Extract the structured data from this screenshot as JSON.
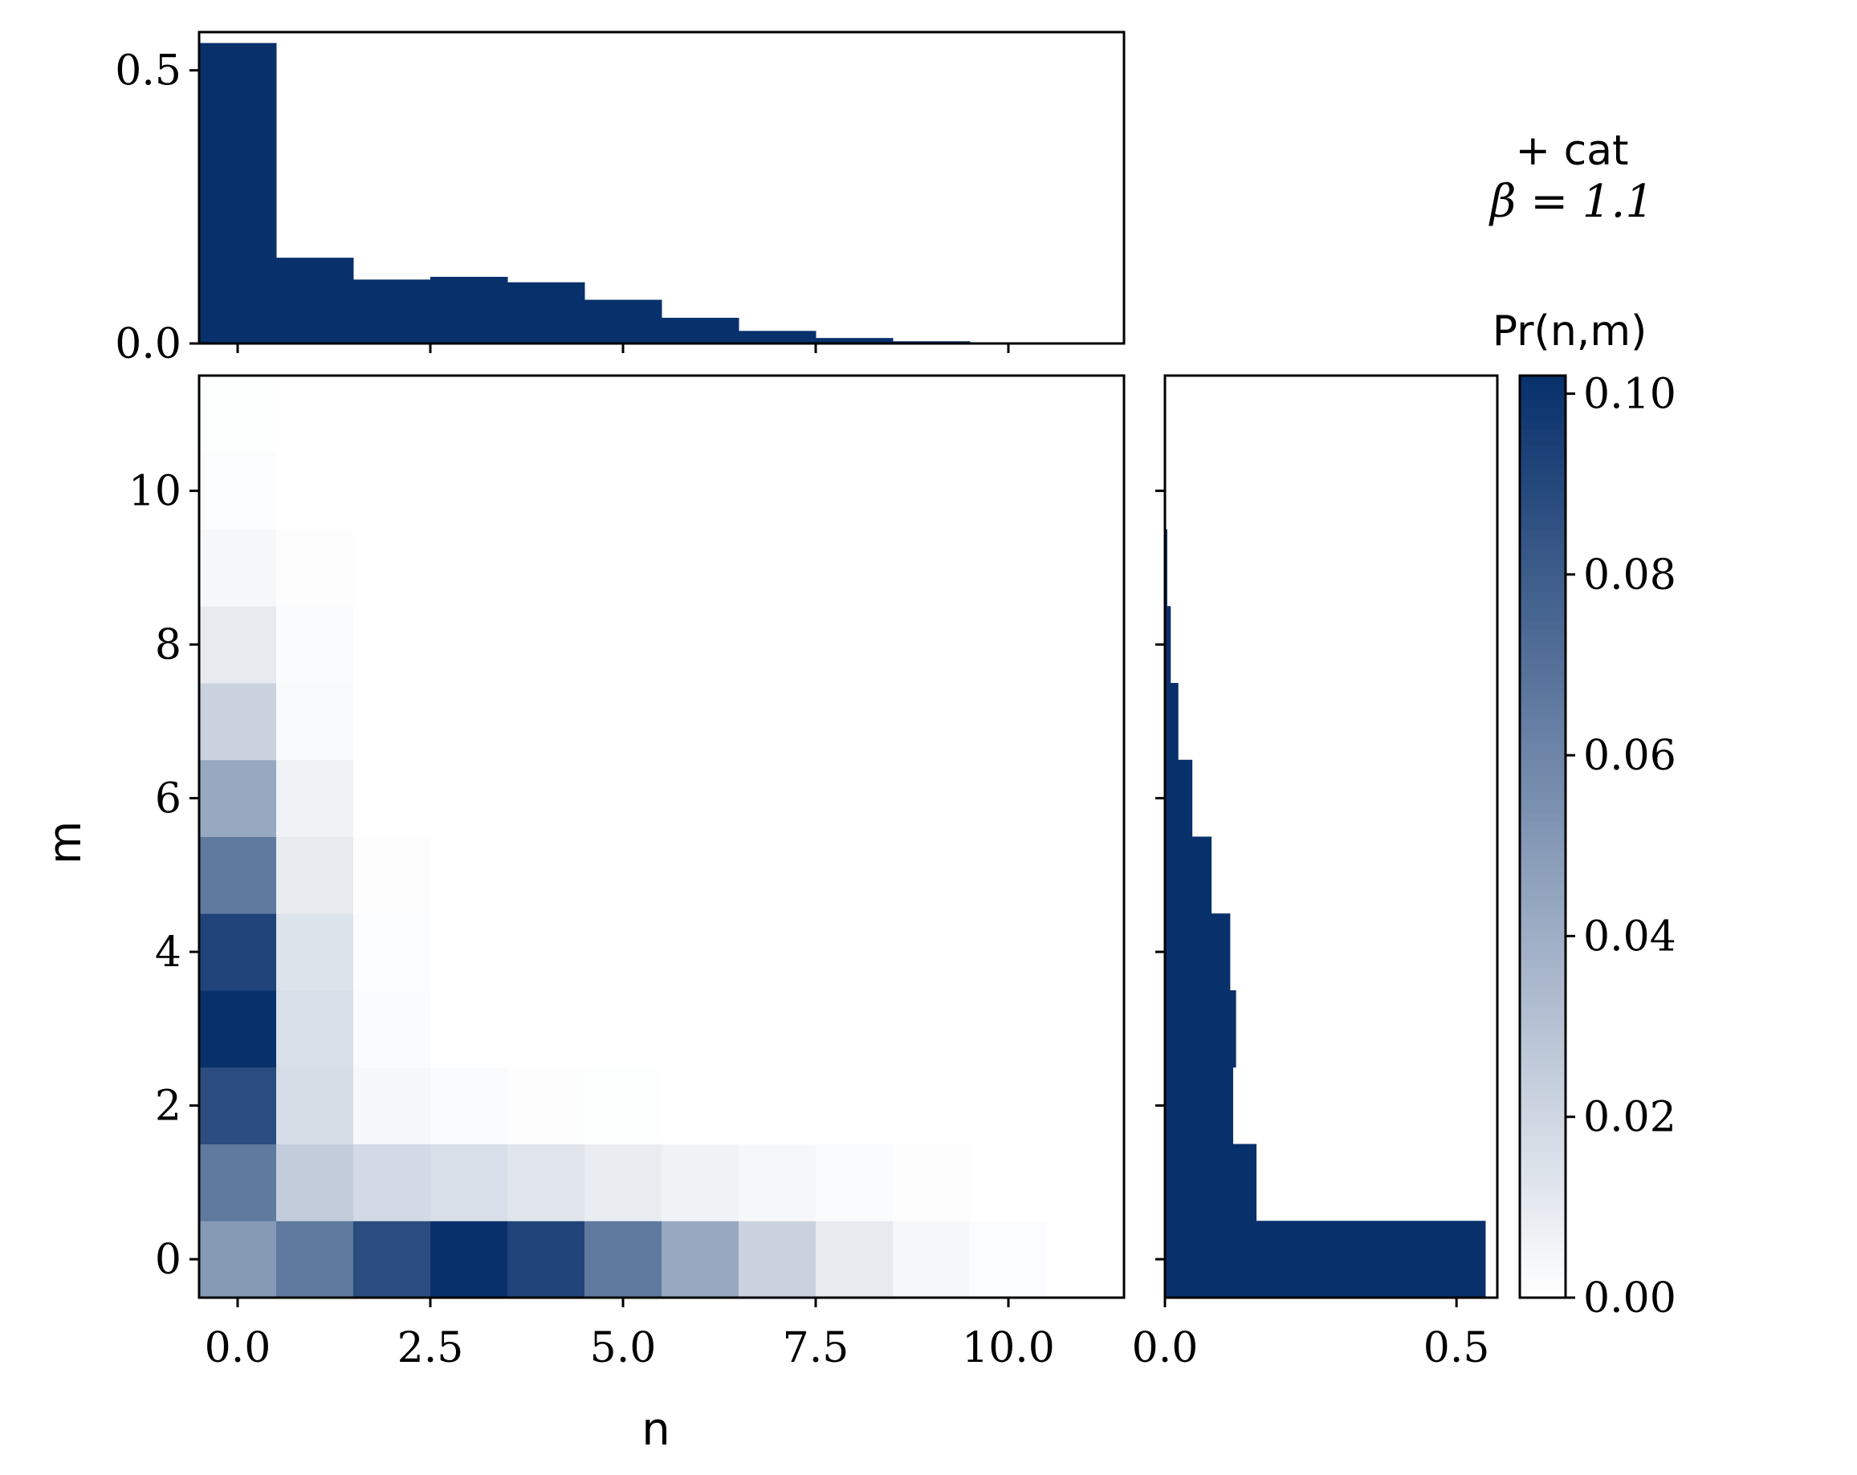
{
  "chart_data": [
    {
      "type": "heatmap",
      "panel": "joint",
      "xlabel": "n",
      "ylabel": "m",
      "x": [
        0,
        1,
        2,
        3,
        4,
        5,
        6,
        7,
        8,
        9,
        10,
        11
      ],
      "y": [
        0,
        1,
        2,
        3,
        4,
        5,
        6,
        7,
        8,
        9,
        10,
        11
      ],
      "xlim": [
        -0.5,
        11.5
      ],
      "ylim": [
        -0.5,
        11.5
      ],
      "xticks": [
        "0.0",
        "2.5",
        "5.0",
        "7.5",
        "10.0"
      ],
      "xtick_values": [
        0,
        2.5,
        5,
        7.5,
        10
      ],
      "yticks": [
        "0",
        "2",
        "4",
        "6",
        "8",
        "10"
      ],
      "ytick_values": [
        0,
        2,
        4,
        6,
        8,
        10
      ],
      "z": [
        [
          0.05,
          0.066,
          0.088,
          0.102,
          0.092,
          0.066,
          0.043,
          0.022,
          0.01,
          0.004,
          0.0015,
          0.0
        ],
        [
          0.066,
          0.025,
          0.018,
          0.016,
          0.013,
          0.009,
          0.006,
          0.004,
          0.002,
          0.001,
          0.0,
          0.0
        ],
        [
          0.088,
          0.017,
          0.004,
          0.002,
          0.001,
          0.0007,
          0.0,
          0.0,
          0.0,
          0.0,
          0.0,
          0.0
        ],
        [
          0.102,
          0.016,
          0.002,
          0.0,
          0.0,
          0.0,
          0.0,
          0.0,
          0.0,
          0.0,
          0.0,
          0.0
        ],
        [
          0.092,
          0.014,
          0.0015,
          0.0,
          0.0,
          0.0,
          0.0,
          0.0,
          0.0,
          0.0,
          0.0,
          0.0
        ],
        [
          0.066,
          0.01,
          0.001,
          0.0,
          0.0,
          0.0,
          0.0,
          0.0,
          0.0,
          0.0,
          0.0,
          0.0
        ],
        [
          0.043,
          0.006,
          0.0,
          0.0,
          0.0,
          0.0,
          0.0,
          0.0,
          0.0,
          0.0,
          0.0,
          0.0
        ],
        [
          0.022,
          0.003,
          0.0,
          0.0,
          0.0,
          0.0,
          0.0,
          0.0,
          0.0,
          0.0,
          0.0,
          0.0
        ],
        [
          0.01,
          0.002,
          0.0,
          0.0,
          0.0,
          0.0,
          0.0,
          0.0,
          0.0,
          0.0,
          0.0,
          0.0
        ],
        [
          0.004,
          0.001,
          0.0,
          0.0,
          0.0,
          0.0,
          0.0,
          0.0,
          0.0,
          0.0,
          0.0,
          0.0
        ],
        [
          0.0015,
          0.0,
          0.0,
          0.0,
          0.0,
          0.0,
          0.0,
          0.0,
          0.0,
          0.0,
          0.0,
          0.0
        ],
        [
          0.0007,
          0.0,
          0.0,
          0.0,
          0.0,
          0.0,
          0.0,
          0.0,
          0.0,
          0.0,
          0.0,
          0.0
        ]
      ],
      "colorbar": {
        "label": "Pr(n,m)",
        "range": [
          0.0,
          0.102
        ],
        "ticks": [
          "0.00",
          "0.02",
          "0.04",
          "0.06",
          "0.08",
          "0.10"
        ],
        "tick_values": [
          0.0,
          0.02,
          0.04,
          0.06,
          0.08,
          0.1
        ],
        "color_low": "#ffffff",
        "color_high": "#08306b"
      }
    },
    {
      "type": "bar",
      "panel": "marginal-top",
      "categories": [
        0,
        1,
        2,
        3,
        4,
        5,
        6,
        7,
        8,
        9,
        10,
        11
      ],
      "values": [
        0.55,
        0.157,
        0.117,
        0.122,
        0.112,
        0.08,
        0.047,
        0.023,
        0.01,
        0.004,
        0.0015,
        0.0007
      ],
      "ylim": [
        0.0,
        0.57
      ],
      "yticks": [
        "0.0",
        "0.5"
      ],
      "ytick_values": [
        0.0,
        0.5
      ],
      "color": "#08306b"
    },
    {
      "type": "bar",
      "orientation": "horizontal",
      "panel": "marginal-right",
      "categories": [
        0,
        1,
        2,
        3,
        4,
        5,
        6,
        7,
        8,
        9,
        10,
        11
      ],
      "values": [
        0.55,
        0.157,
        0.117,
        0.122,
        0.112,
        0.08,
        0.047,
        0.023,
        0.01,
        0.004,
        0.0015,
        0.0007
      ],
      "xlim": [
        0.0,
        0.57
      ],
      "xticks": [
        "0.0",
        "0.5"
      ],
      "xtick_values": [
        0.0,
        0.5
      ],
      "color": "#08306b"
    }
  ],
  "annotation": {
    "line1": "+ cat",
    "line2": "β = 1.1"
  }
}
